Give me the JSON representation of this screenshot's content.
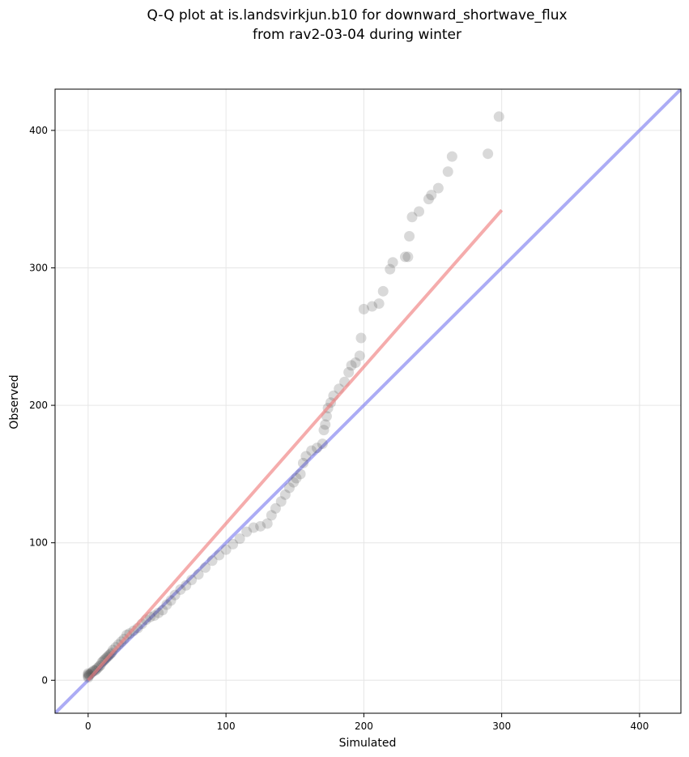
{
  "chart_data": {
    "type": "scatter",
    "title_lines": [
      "Q-Q plot at is.landsvirkjun.b10 for downward_shortwave_flux",
      "from rav2-03-04 during winter"
    ],
    "xlabel": "Simulated",
    "ylabel": "Observed",
    "xlim": [
      -24,
      430
    ],
    "ylim": [
      -24,
      430
    ],
    "xticks": [
      0,
      100,
      200,
      300,
      400
    ],
    "yticks": [
      0,
      100,
      200,
      300,
      400
    ],
    "grid": true,
    "colors": {
      "points": "#404040",
      "fit_line": "#f08080",
      "identity_line": "#8080f0"
    },
    "series": [
      {
        "values_xy": [
          [
            0,
            2
          ],
          [
            0,
            3
          ],
          [
            0,
            4
          ],
          [
            0,
            5
          ],
          [
            1,
            4
          ],
          [
            2,
            5
          ],
          [
            3,
            6
          ],
          [
            4,
            7
          ],
          [
            5,
            7
          ],
          [
            6,
            8
          ],
          [
            7,
            9
          ],
          [
            8,
            10
          ],
          [
            9,
            11
          ],
          [
            10,
            13
          ],
          [
            11,
            14
          ],
          [
            12,
            15
          ],
          [
            13,
            16
          ],
          [
            14,
            17
          ],
          [
            15,
            18
          ],
          [
            16,
            19
          ],
          [
            17,
            20
          ],
          [
            18,
            22
          ],
          [
            20,
            24
          ],
          [
            22,
            26
          ],
          [
            24,
            28
          ],
          [
            26,
            30
          ],
          [
            28,
            33
          ],
          [
            30,
            34
          ],
          [
            33,
            36
          ],
          [
            36,
            38
          ],
          [
            39,
            41
          ],
          [
            42,
            44
          ],
          [
            45,
            46
          ],
          [
            48,
            47
          ],
          [
            51,
            49
          ],
          [
            54,
            51
          ],
          [
            57,
            55
          ],
          [
            60,
            58
          ],
          [
            63,
            62
          ],
          [
            67,
            66
          ],
          [
            71,
            69
          ],
          [
            75,
            73
          ],
          [
            80,
            77
          ],
          [
            85,
            82
          ],
          [
            90,
            87
          ],
          [
            95,
            91
          ],
          [
            100,
            95
          ],
          [
            105,
            99
          ],
          [
            110,
            103
          ],
          [
            115,
            108
          ],
          [
            120,
            111
          ],
          [
            125,
            112
          ],
          [
            130,
            114
          ],
          [
            133,
            120
          ],
          [
            136,
            125
          ],
          [
            140,
            130
          ],
          [
            143,
            135
          ],
          [
            146,
            140
          ],
          [
            149,
            144
          ],
          [
            151,
            147
          ],
          [
            154,
            150
          ],
          [
            156,
            158
          ],
          [
            158,
            163
          ],
          [
            162,
            167
          ],
          [
            166,
            169
          ],
          [
            170,
            172
          ],
          [
            171,
            182
          ],
          [
            172,
            186
          ],
          [
            173,
            192
          ],
          [
            174,
            198
          ],
          [
            176,
            202
          ],
          [
            178,
            207
          ],
          [
            182,
            212
          ],
          [
            186,
            217
          ],
          [
            189,
            224
          ],
          [
            191,
            229
          ],
          [
            194,
            231
          ],
          [
            197,
            236
          ],
          [
            198,
            249
          ],
          [
            200,
            270
          ],
          [
            206,
            272
          ],
          [
            211,
            274
          ],
          [
            214,
            283
          ],
          [
            219,
            299
          ],
          [
            221,
            304
          ],
          [
            230,
            308
          ],
          [
            232,
            308
          ],
          [
            233,
            323
          ],
          [
            235,
            337
          ],
          [
            240,
            341
          ],
          [
            247,
            350
          ],
          [
            249,
            353
          ],
          [
            254,
            358
          ],
          [
            261,
            370
          ],
          [
            264,
            381
          ],
          [
            290,
            383
          ],
          [
            298,
            410
          ]
        ]
      }
    ],
    "lines": [
      {
        "role": "fit",
        "from": [
          0,
          0
        ],
        "to": [
          300,
          342
        ]
      },
      {
        "role": "identity",
        "from": [
          -24,
          -24
        ],
        "to": [
          430,
          430
        ]
      }
    ]
  }
}
